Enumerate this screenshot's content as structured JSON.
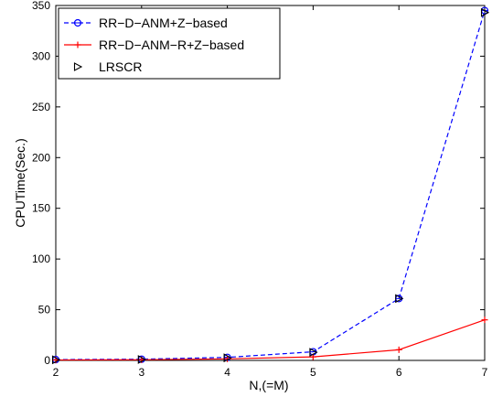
{
  "chart_data": {
    "type": "line",
    "xlabel": "N,(=M)",
    "ylabel": "CPUTime(Sec.)",
    "xlim": [
      2,
      7
    ],
    "ylim": [
      0,
      350
    ],
    "x_ticks": [
      "2",
      "3",
      "4",
      "5",
      "6",
      "7"
    ],
    "y_ticks": [
      "0",
      "50",
      "100",
      "150",
      "200",
      "250",
      "300",
      "350"
    ],
    "x": [
      2,
      3,
      4,
      5,
      6,
      7
    ],
    "grid": false,
    "legend_position": "top-left",
    "series": [
      {
        "name": "RR−D−ANM+Z−based",
        "values": [
          0.8,
          1.2,
          3.0,
          8.5,
          61.0,
          345.0
        ],
        "color": "#0000ff",
        "line": "dashed",
        "marker": "circle"
      },
      {
        "name": "RR−D−ANM−R+Z−based",
        "values": [
          0.4,
          0.6,
          1.5,
          3.5,
          10.5,
          40.0
        ],
        "color": "#ff0000",
        "line": "solid",
        "marker": "plus"
      },
      {
        "name": "LRSCR",
        "values": [
          0.6,
          0.9,
          2.5,
          8.0,
          61.0,
          343.0
        ],
        "color": "#000000",
        "line": "none",
        "marker": "triangle-right"
      }
    ]
  }
}
